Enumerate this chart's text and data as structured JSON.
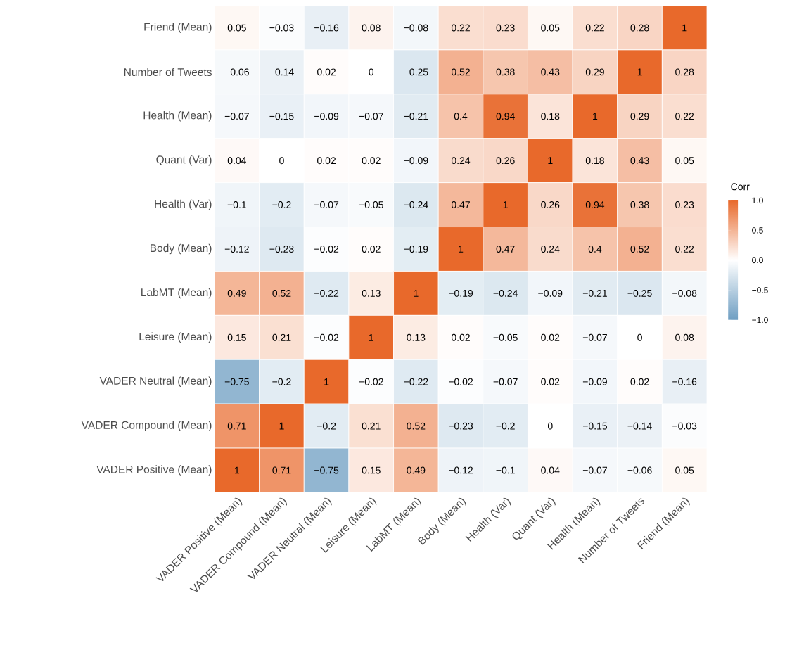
{
  "chart_data": {
    "type": "heatmap",
    "clabel": "Corr",
    "data_labels": true,
    "categories": [
      "VADER Positive (Mean)",
      "VADER Compound (Mean)",
      "VADER Neutral (Mean)",
      "Leisure (Mean)",
      "LabMT (Mean)",
      "Body (Mean)",
      "Health (Var)",
      "Quant (Var)",
      "Health (Mean)",
      "Number of Tweets",
      "Friend (Mean)"
    ],
    "y_categories": [
      "Friend (Mean)",
      "Number of Tweets",
      "Health (Mean)",
      "Quant (Var)",
      "Health (Var)",
      "Body (Mean)",
      "LabMT (Mean)",
      "Leisure (Mean)",
      "VADER Neutral (Mean)",
      "VADER Compound (Mean)",
      "VADER Positive (Mean)"
    ],
    "cells": [
      [
        0.05,
        -0.03,
        -0.16,
        0.08,
        -0.08,
        0.22,
        0.23,
        0.05,
        0.22,
        0.28,
        1
      ],
      [
        -0.06,
        -0.14,
        0.02,
        0,
        -0.25,
        0.52,
        0.38,
        0.43,
        0.29,
        1,
        0.28
      ],
      [
        -0.07,
        -0.15,
        -0.09,
        -0.07,
        -0.21,
        0.4,
        0.94,
        0.18,
        1,
        0.29,
        0.22
      ],
      [
        0.04,
        0,
        0.02,
        0.02,
        -0.09,
        0.24,
        0.26,
        1,
        0.18,
        0.43,
        0.05
      ],
      [
        -0.1,
        -0.2,
        -0.07,
        -0.05,
        -0.24,
        0.47,
        1,
        0.26,
        0.94,
        0.38,
        0.23
      ],
      [
        -0.12,
        -0.23,
        -0.02,
        0.02,
        -0.19,
        1,
        0.47,
        0.24,
        0.4,
        0.52,
        0.22
      ],
      [
        0.49,
        0.52,
        -0.22,
        0.13,
        1,
        -0.19,
        -0.24,
        -0.09,
        -0.21,
        -0.25,
        -0.08
      ],
      [
        0.15,
        0.21,
        -0.02,
        1,
        0.13,
        0.02,
        -0.05,
        0.02,
        -0.07,
        0,
        0.08
      ],
      [
        -0.75,
        -0.2,
        1,
        -0.02,
        -0.22,
        -0.02,
        -0.07,
        0.02,
        -0.09,
        0.02,
        -0.16
      ],
      [
        0.71,
        1,
        -0.2,
        0.21,
        0.52,
        -0.23,
        -0.2,
        0,
        -0.15,
        -0.14,
        -0.03
      ],
      [
        1,
        0.71,
        -0.75,
        0.15,
        0.49,
        -0.12,
        -0.1,
        0.04,
        -0.07,
        -0.06,
        0.05
      ]
    ],
    "clim": [
      -1,
      1
    ],
    "cticks": [
      {
        "value": -1,
        "label": "−1.0"
      },
      {
        "value": -0.5,
        "label": "−0.5"
      },
      {
        "value": 0,
        "label": "0.0"
      },
      {
        "value": 0.5,
        "label": "0.5"
      },
      {
        "value": 1,
        "label": "1.0"
      }
    ]
  }
}
